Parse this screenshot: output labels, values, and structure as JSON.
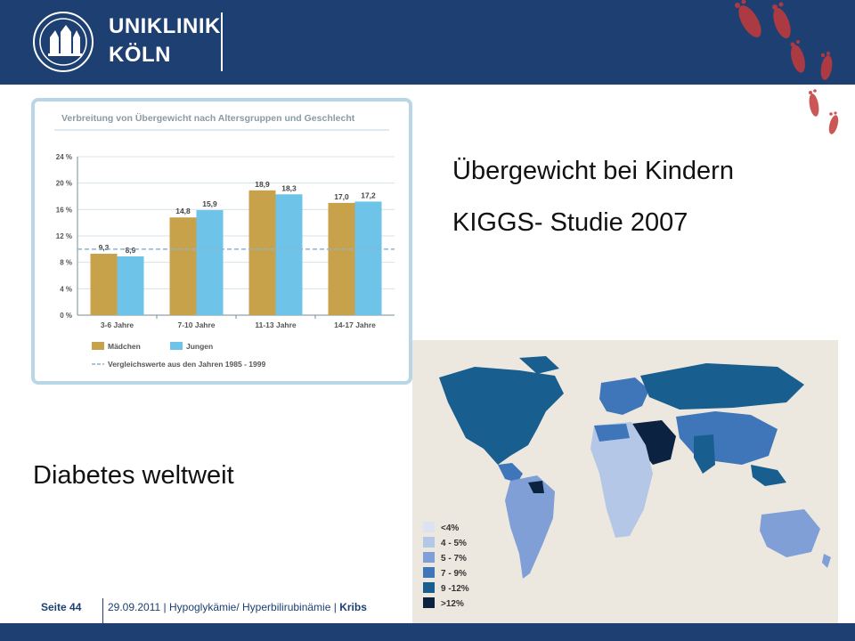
{
  "header": {
    "logo_line1": "UNIKLINIK",
    "logo_line2": "KÖLN",
    "bg_color": "#1d3f72"
  },
  "slide": {
    "title_overweight": "Übergewicht bei Kindern",
    "title_study": "KIGGS- Studie 2007",
    "title_diabetes": "Diabetes weltweit"
  },
  "chart_data": {
    "type": "bar",
    "title": "Verbreitung von Übergewicht nach Altersgruppen und Geschlecht",
    "categories": [
      "3-6 Jahre",
      "7-10 Jahre",
      "11-13 Jahre",
      "14-17 Jahre"
    ],
    "series": [
      {
        "name": "Mädchen",
        "values": [
          9.3,
          14.8,
          18.9,
          17.0
        ],
        "labels": [
          "9,3",
          "14,8",
          "18,9",
          "17,0"
        ],
        "color": "#c8a24a"
      },
      {
        "name": "Jungen",
        "values": [
          8.9,
          15.9,
          18.3,
          17.2
        ],
        "labels": [
          "8,9",
          "15,9",
          "18,3",
          "17,2"
        ],
        "color": "#6ec3e8"
      }
    ],
    "reference_line": {
      "label": "Vergleichswerte aus den Jahren 1985 - 1999",
      "value": 10
    },
    "yticks": [
      "0 %",
      "4 %",
      "8 %",
      "12 %",
      "16 %",
      "20 %",
      "24 %"
    ],
    "ylim": [
      0,
      24
    ],
    "legend_position": "bottom"
  },
  "map": {
    "legend": [
      {
        "label": "<4%",
        "color": "#dbe3f1"
      },
      {
        "label": "4 - 5%",
        "color": "#b4c7e6"
      },
      {
        "label": "5 - 7%",
        "color": "#7f9fd6"
      },
      {
        "label": "7 - 9%",
        "color": "#3f76ba"
      },
      {
        "label": "9 -12%",
        "color": "#185e8e"
      },
      {
        "label": ">12%",
        "color": "#0b2340"
      }
    ]
  },
  "footer": {
    "page": "Seite 44",
    "date": "29.09.2011",
    "topic": "Hypoglykämie/ Hyperbilirubinämie",
    "author": "Kribs",
    "sep": "|"
  }
}
